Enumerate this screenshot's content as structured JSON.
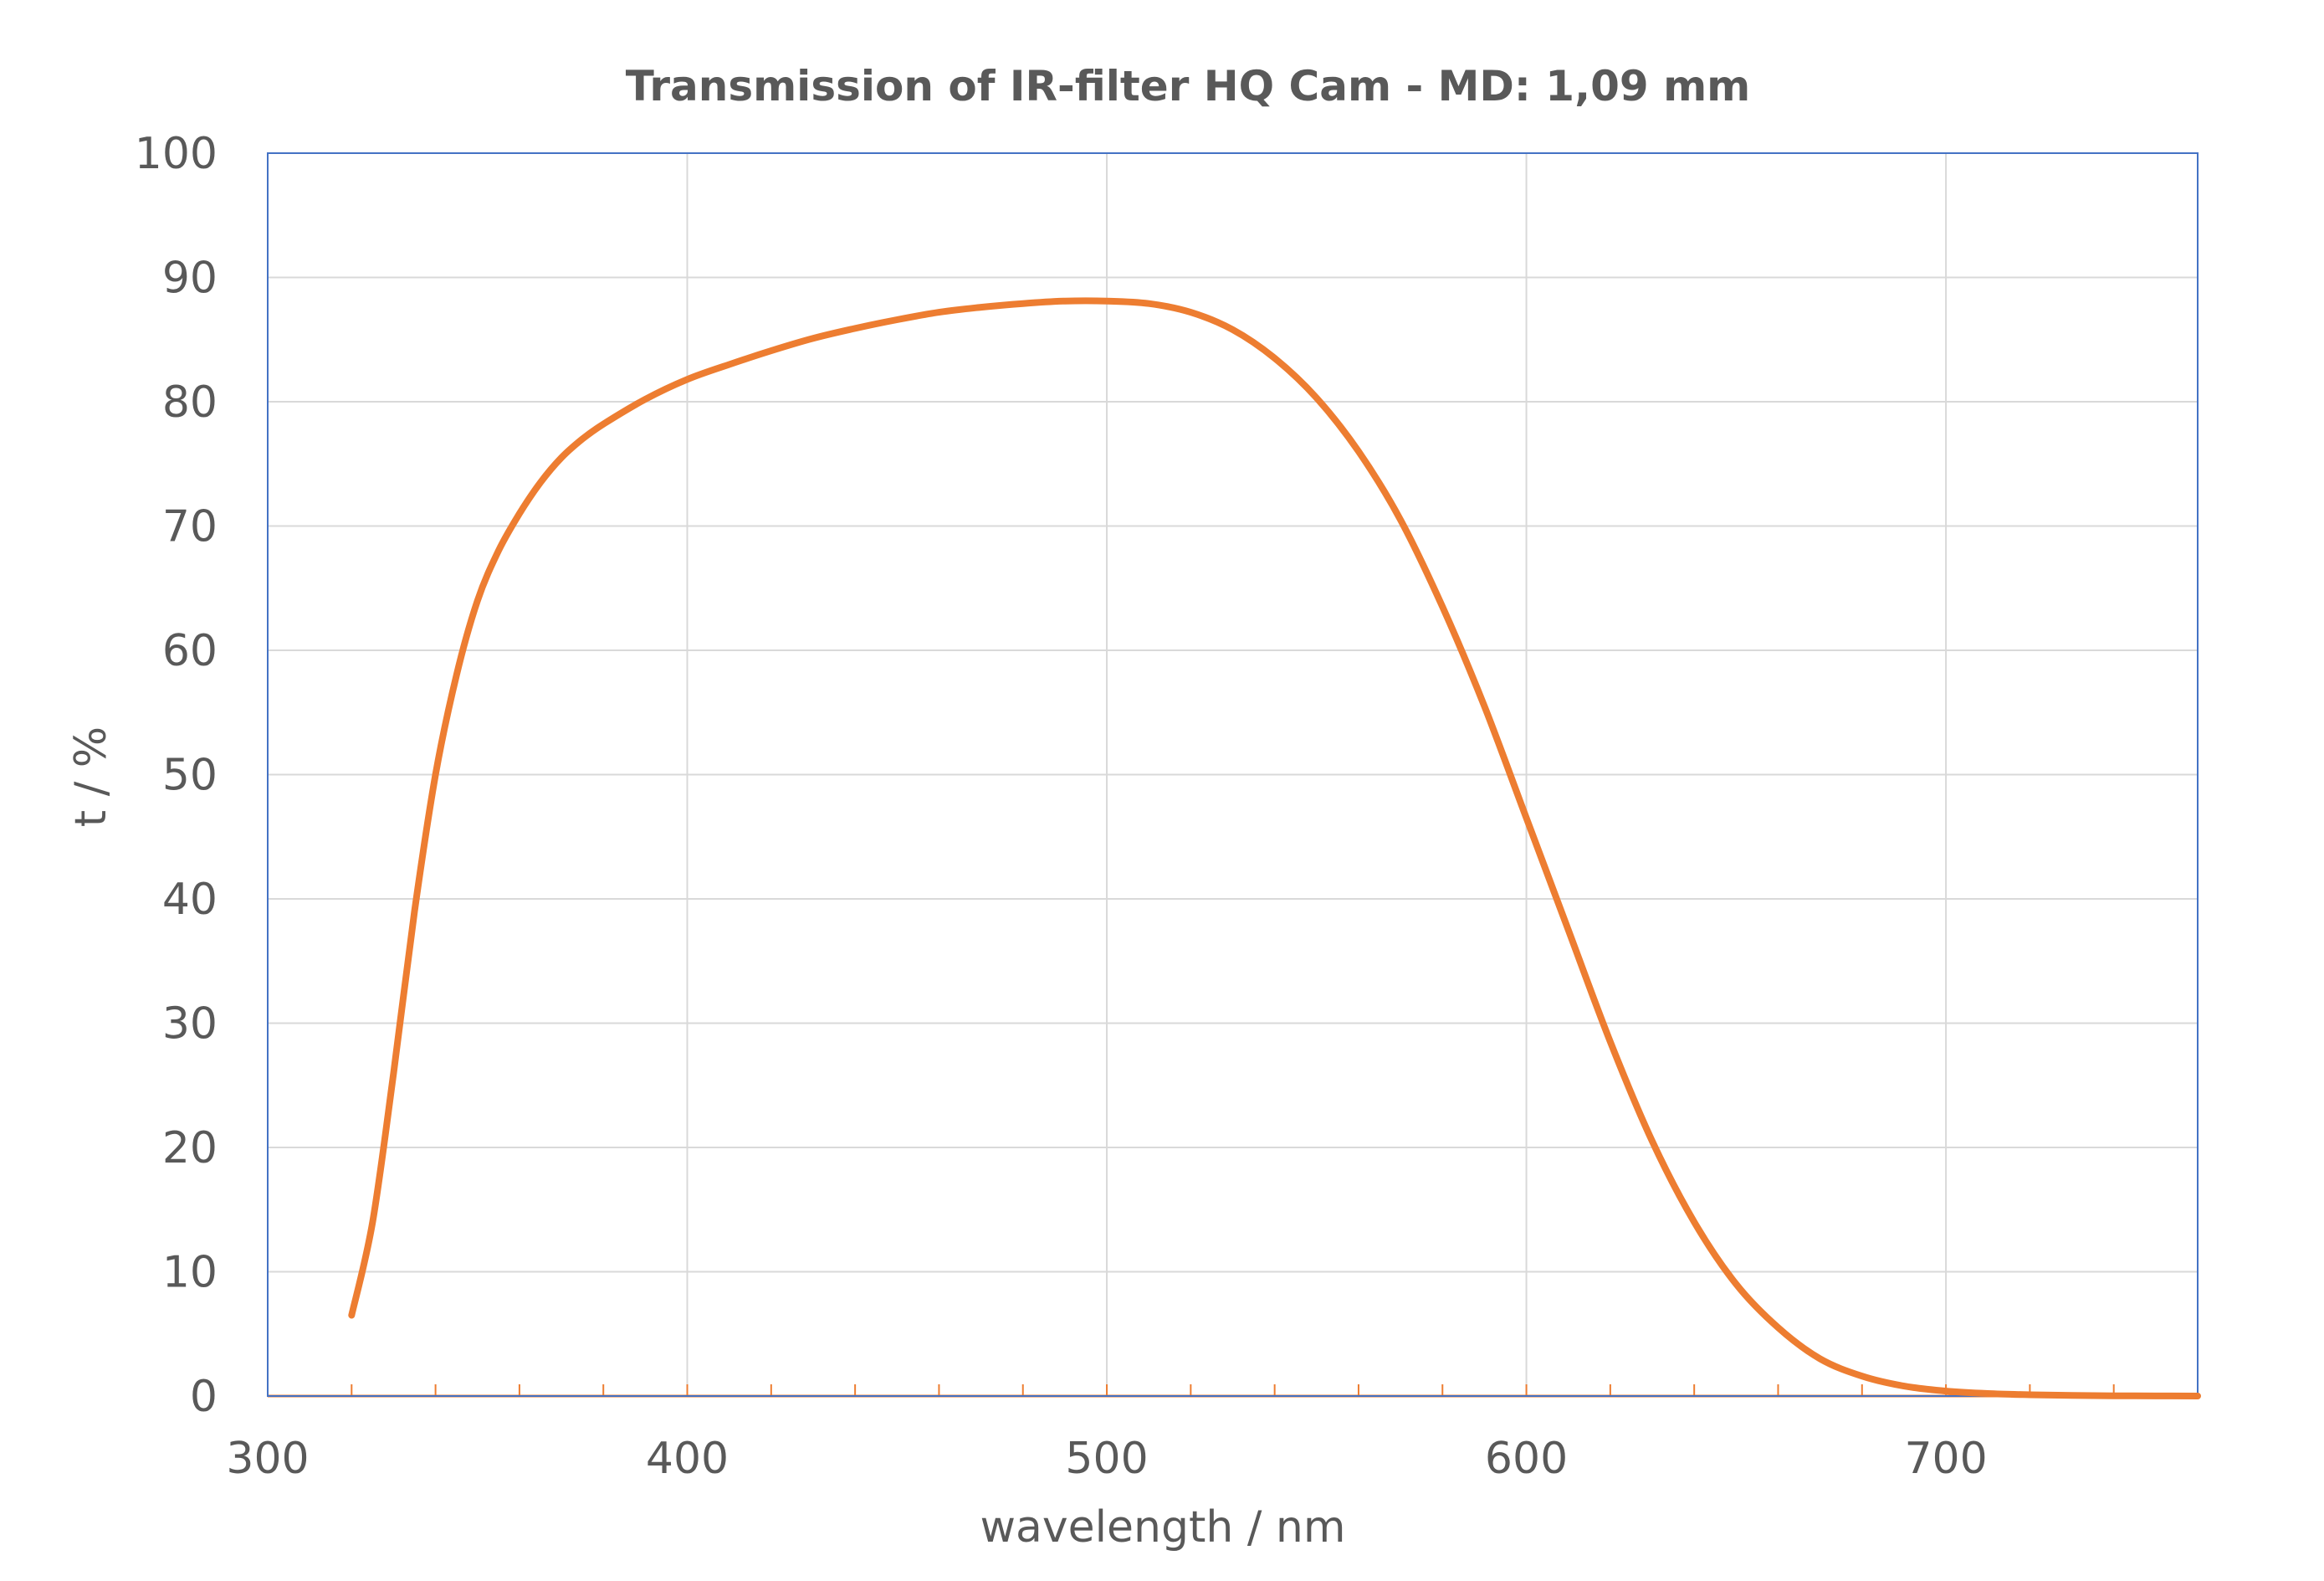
{
  "chart_data": {
    "type": "line",
    "title": "Transmission of IR-filter HQ Cam - MD:  1,09 mm",
    "xlabel": "wavelength / nm",
    "ylabel": "t / %",
    "xlim": [
      300,
      760
    ],
    "ylim": [
      0,
      100
    ],
    "x_ticks": [
      300,
      400,
      500,
      600,
      700
    ],
    "y_ticks": [
      0,
      10,
      20,
      30,
      40,
      50,
      60,
      70,
      80,
      90,
      100
    ],
    "x_minor_step": 20,
    "grid": true,
    "legend": "none",
    "colors": {
      "series": "#ED7D31",
      "plot_border": "#4472C4",
      "grid": "#D9D9D9",
      "baseline": "#ED7D31",
      "text": "#595959"
    },
    "series": [
      {
        "x": [
          320,
          325,
          330,
          335,
          340,
          345,
          350,
          355,
          360,
          365,
          370,
          375,
          380,
          390,
          400,
          410,
          420,
          430,
          440,
          450,
          460,
          470,
          480,
          490,
          500,
          510,
          520,
          530,
          540,
          550,
          560,
          570,
          580,
          590,
          600,
          610,
          620,
          630,
          640,
          650,
          660,
          670,
          680,
          690,
          700,
          710,
          720,
          730,
          740,
          750,
          760
        ],
        "y": [
          6.5,
          14,
          26,
          39,
          50,
          58,
          64,
          68,
          71,
          73.5,
          75.5,
          77,
          78.2,
          80.2,
          81.8,
          83,
          84.1,
          85.1,
          85.9,
          86.6,
          87.2,
          87.6,
          87.9,
          88.1,
          88.1,
          87.9,
          87.2,
          85.8,
          83.5,
          80.3,
          76,
          70.5,
          63.5,
          55.5,
          46.5,
          37.5,
          28.5,
          20.5,
          14,
          9,
          5.5,
          3,
          1.6,
          0.8,
          0.4,
          0.2,
          0.1,
          0.05,
          0.02,
          0.01,
          0
        ]
      }
    ]
  }
}
